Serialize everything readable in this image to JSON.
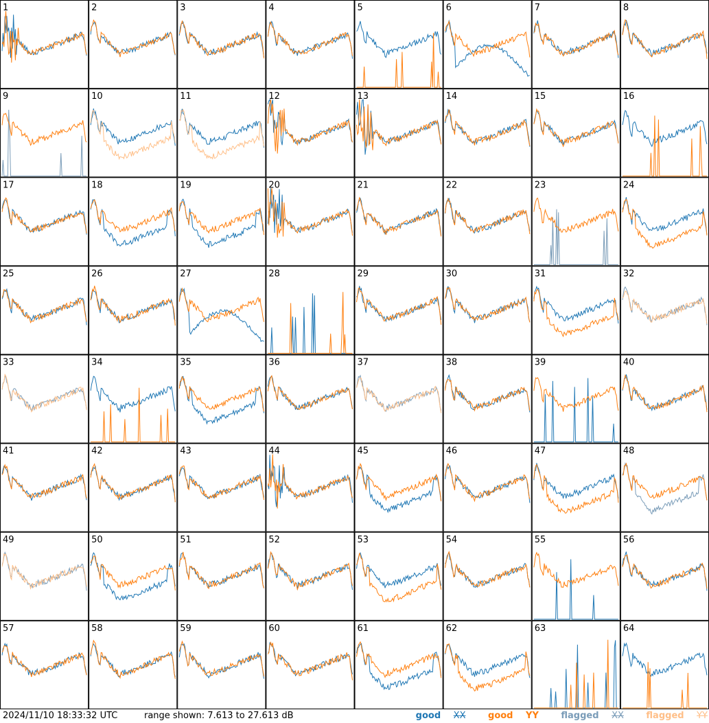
{
  "footer": {
    "timestamp": "2024/11/10 18:33:32 UTC",
    "range_text": "range shown: 7.613 to 27.613 dB",
    "legend": [
      {
        "label": "good",
        "pol": "XX",
        "color": "#1f77b4"
      },
      {
        "label": "good",
        "pol": "YY",
        "color": "#ff7f0e"
      },
      {
        "label": "flagged",
        "pol": "XX",
        "color": "#7a9cb8"
      },
      {
        "label": "flagged",
        "pol": "YY",
        "color": "#ffbf88"
      }
    ]
  },
  "chart_data": {
    "type": "line",
    "layout": "small-multiples 8x8",
    "y_range_db": [
      7.613,
      27.613
    ],
    "panels": [
      {
        "id": "1",
        "xx": "good",
        "yy": "good",
        "style": "spiky"
      },
      {
        "id": "2",
        "xx": "good",
        "yy": "good",
        "style": "normal"
      },
      {
        "id": "3",
        "xx": "good",
        "yy": "good",
        "style": "normal"
      },
      {
        "id": "4",
        "xx": "good",
        "yy": "good",
        "style": "normal"
      },
      {
        "id": "5",
        "xx": "good",
        "yy": "good",
        "style": "yy_dead"
      },
      {
        "id": "6",
        "xx": "good",
        "yy": "good",
        "style": "xx_dip"
      },
      {
        "id": "7",
        "xx": "good",
        "yy": "good",
        "style": "normal"
      },
      {
        "id": "8",
        "xx": "good",
        "yy": "good",
        "style": "normal"
      },
      {
        "id": "9",
        "xx": "flagged",
        "yy": "good",
        "style": "xx_dead"
      },
      {
        "id": "10",
        "xx": "good",
        "yy": "flagged",
        "style": "yy_low"
      },
      {
        "id": "11",
        "xx": "good",
        "yy": "flagged",
        "style": "yy_low"
      },
      {
        "id": "12",
        "xx": "good",
        "yy": "good",
        "style": "spiky"
      },
      {
        "id": "13",
        "xx": "good",
        "yy": "good",
        "style": "spiky"
      },
      {
        "id": "14",
        "xx": "good",
        "yy": "good",
        "style": "normal"
      },
      {
        "id": "15",
        "xx": "good",
        "yy": "good",
        "style": "normal"
      },
      {
        "id": "16",
        "xx": "good",
        "yy": "good",
        "style": "yy_dead"
      },
      {
        "id": "17",
        "xx": "good",
        "yy": "good",
        "style": "normal"
      },
      {
        "id": "18",
        "xx": "good",
        "yy": "good",
        "style": "xx_low"
      },
      {
        "id": "19",
        "xx": "good",
        "yy": "good",
        "style": "xx_low"
      },
      {
        "id": "20",
        "xx": "good",
        "yy": "good",
        "style": "spiky"
      },
      {
        "id": "21",
        "xx": "good",
        "yy": "good",
        "style": "normal"
      },
      {
        "id": "22",
        "xx": "good",
        "yy": "good",
        "style": "normal"
      },
      {
        "id": "23",
        "xx": "flagged",
        "yy": "good",
        "style": "xx_dead"
      },
      {
        "id": "24",
        "xx": "good",
        "yy": "good",
        "style": "yy_low"
      },
      {
        "id": "25",
        "xx": "good",
        "yy": "good",
        "style": "normal"
      },
      {
        "id": "26",
        "xx": "good",
        "yy": "good",
        "style": "normal"
      },
      {
        "id": "27",
        "xx": "good",
        "yy": "good",
        "style": "xx_dip"
      },
      {
        "id": "28",
        "xx": "good",
        "yy": "good",
        "style": "both_dead"
      },
      {
        "id": "29",
        "xx": "good",
        "yy": "good",
        "style": "normal"
      },
      {
        "id": "30",
        "xx": "good",
        "yy": "good",
        "style": "normal"
      },
      {
        "id": "31",
        "xx": "good",
        "yy": "good",
        "style": "yy_low"
      },
      {
        "id": "32",
        "xx": "flagged",
        "yy": "flagged",
        "style": "flag_yy_only"
      },
      {
        "id": "33",
        "xx": "flagged",
        "yy": "flagged",
        "style": "flag_both"
      },
      {
        "id": "34",
        "xx": "good",
        "yy": "good",
        "style": "yy_dead"
      },
      {
        "id": "35",
        "xx": "good",
        "yy": "good",
        "style": "xx_low"
      },
      {
        "id": "36",
        "xx": "good",
        "yy": "good",
        "style": "normal"
      },
      {
        "id": "37",
        "xx": "flagged",
        "yy": "flagged",
        "style": "flag_both"
      },
      {
        "id": "38",
        "xx": "good",
        "yy": "good",
        "style": "normal"
      },
      {
        "id": "39",
        "xx": "good",
        "yy": "good",
        "style": "xx_dead"
      },
      {
        "id": "40",
        "xx": "good",
        "yy": "good",
        "style": "normal"
      },
      {
        "id": "41",
        "xx": "good",
        "yy": "good",
        "style": "normal"
      },
      {
        "id": "42",
        "xx": "good",
        "yy": "good",
        "style": "normal"
      },
      {
        "id": "43",
        "xx": "good",
        "yy": "good",
        "style": "normal"
      },
      {
        "id": "44",
        "xx": "good",
        "yy": "good",
        "style": "spiky"
      },
      {
        "id": "45",
        "xx": "good",
        "yy": "good",
        "style": "xx_low"
      },
      {
        "id": "46",
        "xx": "good",
        "yy": "good",
        "style": "normal"
      },
      {
        "id": "47",
        "xx": "good",
        "yy": "good",
        "style": "yy_low"
      },
      {
        "id": "48",
        "xx": "flagged",
        "yy": "good",
        "style": "xx_low"
      },
      {
        "id": "49",
        "xx": "flagged",
        "yy": "flagged",
        "style": "flag_both"
      },
      {
        "id": "50",
        "xx": "good",
        "yy": "good",
        "style": "xx_low"
      },
      {
        "id": "51",
        "xx": "good",
        "yy": "good",
        "style": "normal"
      },
      {
        "id": "52",
        "xx": "good",
        "yy": "good",
        "style": "normal"
      },
      {
        "id": "53",
        "xx": "good",
        "yy": "good",
        "style": "yy_low"
      },
      {
        "id": "54",
        "xx": "good",
        "yy": "good",
        "style": "normal"
      },
      {
        "id": "55",
        "xx": "good",
        "yy": "good",
        "style": "xx_dead"
      },
      {
        "id": "56",
        "xx": "good",
        "yy": "good",
        "style": "normal"
      },
      {
        "id": "57",
        "xx": "good",
        "yy": "good",
        "style": "normal"
      },
      {
        "id": "58",
        "xx": "good",
        "yy": "good",
        "style": "normal"
      },
      {
        "id": "59",
        "xx": "good",
        "yy": "good",
        "style": "normal"
      },
      {
        "id": "60",
        "xx": "good",
        "yy": "good",
        "style": "normal"
      },
      {
        "id": "61",
        "xx": "good",
        "yy": "good",
        "style": "xx_low"
      },
      {
        "id": "62",
        "xx": "good",
        "yy": "good",
        "style": "yy_low"
      },
      {
        "id": "63",
        "xx": "good",
        "yy": "good",
        "style": "both_dead"
      },
      {
        "id": "64",
        "xx": "good",
        "yy": "good",
        "style": "xx_only"
      }
    ]
  }
}
